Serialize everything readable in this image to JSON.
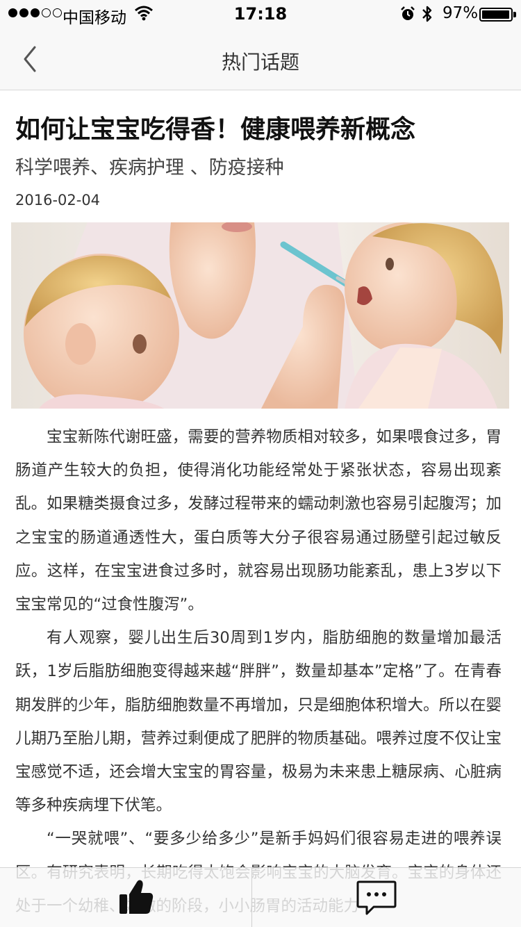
{
  "status_bar": {
    "carrier": "中国移动",
    "time": "17:18",
    "battery": "97%",
    "battery_level": 0.97,
    "signal_bars": 3,
    "icons": [
      "signal-icon",
      "wifi-icon",
      "alarm-icon",
      "bluetooth-icon",
      "battery-icon"
    ]
  },
  "nav": {
    "title": "热门话题",
    "back_icon": "chevron-left-icon"
  },
  "article": {
    "title": "如何让宝宝吃得香！健康喂养新概念",
    "subtitle": "科学喂养、疾病护理 、防疫接种",
    "date": "2016-02-04",
    "paragraphs": [
      "宝宝新陈代谢旺盛，需要的营养物质相对较多，如果喂食过多，胃肠道产生较大的负担，使得消化功能经常处于紧张状态，容易出现紊乱。如果糖类摄食过多，发酵过程带来的蠕动刺激也容易引起腹泻；加之宝宝的肠道通透性大，蛋白质等大分子很容易通过肠壁引起过敏反应。这样，在宝宝进食过多时，就容易出现肠功能紊乱，患上3岁以下宝宝常见的“过食性腹泻”。",
      "有人观察，婴儿出生后30周到1岁内，脂肪细胞的数量增加最活跃，1岁后脂肪细胞变得越来越“胖胖”，数量却基本”定格”了。在青春期发胖的少年，脂肪细胞数量不再增加，只是细胞体积增大。所以在婴儿期乃至胎儿期，营养过剩便成了肥胖的物质基础。喂养过度不仅让宝宝感觉不适，还会增大宝宝的胃容量，极易为未来患上糖尿病、心脏病等多种疾病埋下伏笔。",
      "“一哭就喂”、“要多少给多少”是新手妈妈们很容易走进的喂养误区。有研究表明，长期吃得太饱会影响宝宝的大脑发育。宝宝的身体还处于一个幼稚、娇嫩的阶段，小小肠胃的活动能力"
    ]
  },
  "bottom_bar": {
    "like_icon": "thumbs-up-icon",
    "comment_icon": "comment-bubble-icon"
  }
}
